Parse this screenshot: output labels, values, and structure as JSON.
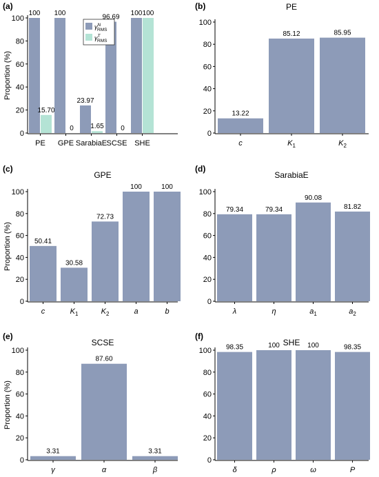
{
  "colors": {
    "bar": "#8d9bb8",
    "bar2": "#b4e3d5",
    "axis": "#000000"
  },
  "charts": [
    {
      "panel": "(a)",
      "title": "",
      "ylabel": "Proportion (%)",
      "ylim": [
        0,
        100
      ],
      "yticks": [
        "0",
        "20",
        "40",
        "60",
        "80",
        "100"
      ],
      "legend": {
        "placement": "top-center",
        "entries": [
          {
            "base": "γ",
            "sup": "N",
            "sub": "RMS",
            "color": "#8d9bb8"
          },
          {
            "base": "γ",
            "sup": "T",
            "sub": "RMS",
            "color": "#b4e3d5"
          }
        ]
      },
      "chart_data": {
        "type": "bar",
        "categories": [
          "PE",
          "GPE",
          "SarabiaE",
          "SCSE",
          "SHE"
        ],
        "series": [
          {
            "values": [
              100,
              100,
              23.97,
              96.69,
              100
            ],
            "labels": [
              "100",
              "100",
              "23.97",
              "96.69",
              "100"
            ]
          },
          {
            "values": [
              15.7,
              0,
              1.65,
              0,
              100
            ],
            "labels": [
              "15.70",
              "0",
              "1.65",
              "0",
              "100"
            ]
          }
        ]
      }
    },
    {
      "panel": "(b)",
      "title": "PE",
      "ylabel": "",
      "ylim": [
        0,
        100
      ],
      "yticks": [
        "0",
        "20",
        "40",
        "60",
        "80",
        "100"
      ],
      "chart_data": {
        "type": "bar",
        "categories": [
          {
            "base": "c",
            "sub": ""
          },
          {
            "base": "K",
            "sub": "1"
          },
          {
            "base": "K",
            "sub": "2"
          }
        ],
        "series": [
          {
            "values": [
              13.22,
              85.12,
              85.95
            ],
            "labels": [
              "13.22",
              "85.12",
              "85.95"
            ]
          }
        ]
      }
    },
    {
      "panel": "(c)",
      "title": "GPE",
      "ylabel": "Proportion (%)",
      "ylim": [
        0,
        100
      ],
      "yticks": [
        "0",
        "20",
        "40",
        "60",
        "80",
        "100"
      ],
      "chart_data": {
        "type": "bar",
        "categories": [
          {
            "base": "c",
            "sub": ""
          },
          {
            "base": "K",
            "sub": "1"
          },
          {
            "base": "K",
            "sub": "2"
          },
          {
            "base": "a",
            "sub": ""
          },
          {
            "base": "b",
            "sub": ""
          }
        ],
        "series": [
          {
            "values": [
              50.41,
              30.58,
              72.73,
              100,
              100
            ],
            "labels": [
              "50.41",
              "30.58",
              "72.73",
              "100",
              "100"
            ]
          }
        ]
      }
    },
    {
      "panel": "(d)",
      "title": "SarabiaE",
      "ylabel": "",
      "ylim": [
        0,
        100
      ],
      "yticks": [
        "0",
        "20",
        "40",
        "60",
        "80",
        "100"
      ],
      "chart_data": {
        "type": "bar",
        "categories": [
          {
            "base": "λ",
            "sub": ""
          },
          {
            "base": "η",
            "sub": ""
          },
          {
            "base": "a",
            "sub": "1"
          },
          {
            "base": "a",
            "sub": "2"
          }
        ],
        "series": [
          {
            "values": [
              79.34,
              79.34,
              90.08,
              81.82
            ],
            "labels": [
              "79.34",
              "79.34",
              "90.08",
              "81.82"
            ]
          }
        ]
      }
    },
    {
      "panel": "(e)",
      "title": "SCSE",
      "ylabel": "Proportion (%)",
      "ylim": [
        0,
        100
      ],
      "yticks": [
        "0",
        "20",
        "40",
        "60",
        "80",
        "100"
      ],
      "chart_data": {
        "type": "bar",
        "categories": [
          {
            "base": "γ",
            "sub": ""
          },
          {
            "base": "α",
            "sub": ""
          },
          {
            "base": "β",
            "sub": ""
          }
        ],
        "series": [
          {
            "values": [
              3.31,
              87.6,
              3.31
            ],
            "labels": [
              "3.31",
              "87.60",
              "3.31"
            ]
          }
        ]
      }
    },
    {
      "panel": "(f)",
      "title": "SHE",
      "ylabel": "",
      "ylim": [
        0,
        100
      ],
      "yticks": [
        "0",
        "20",
        "40",
        "60",
        "80",
        "100"
      ],
      "chart_data": {
        "type": "bar",
        "categories": [
          {
            "base": "δ",
            "sub": ""
          },
          {
            "base": "ρ",
            "sub": ""
          },
          {
            "base": "ω",
            "sub": ""
          },
          {
            "base": "P",
            "sub": ""
          }
        ],
        "series": [
          {
            "values": [
              98.35,
              100,
              100,
              98.35
            ],
            "labels": [
              "98.35",
              "100",
              "100",
              "98.35"
            ]
          }
        ]
      }
    }
  ]
}
